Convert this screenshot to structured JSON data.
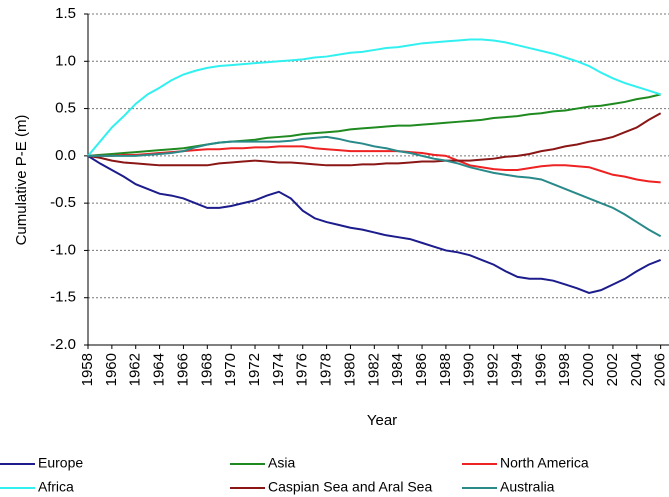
{
  "chart_data": {
    "type": "line",
    "y_label": "Cumulative P-E (m)",
    "x_label": "Year",
    "x": [
      1958,
      1959,
      1960,
      1961,
      1962,
      1963,
      1964,
      1965,
      1966,
      1967,
      1968,
      1969,
      1970,
      1971,
      1972,
      1973,
      1974,
      1975,
      1976,
      1977,
      1978,
      1979,
      1980,
      1981,
      1982,
      1983,
      1984,
      1985,
      1986,
      1987,
      1988,
      1989,
      1990,
      1991,
      1992,
      1993,
      1994,
      1995,
      1996,
      1997,
      1998,
      1999,
      2000,
      2001,
      2002,
      2003,
      2004,
      2005,
      2006
    ],
    "series": [
      {
        "name": "Europe",
        "color": "#1c1c8c",
        "values": [
          0.0,
          -0.08,
          -0.15,
          -0.22,
          -0.3,
          -0.35,
          -0.4,
          -0.42,
          -0.45,
          -0.5,
          -0.55,
          -0.55,
          -0.53,
          -0.5,
          -0.47,
          -0.42,
          -0.38,
          -0.45,
          -0.58,
          -0.66,
          -0.7,
          -0.73,
          -0.76,
          -0.78,
          -0.81,
          -0.84,
          -0.86,
          -0.88,
          -0.92,
          -0.96,
          -1.0,
          -1.02,
          -1.05,
          -1.1,
          -1.15,
          -1.22,
          -1.28,
          -1.3,
          -1.3,
          -1.32,
          -1.36,
          -1.4,
          -1.45,
          -1.42,
          -1.36,
          -1.3,
          -1.22,
          -1.15,
          -1.1
        ]
      },
      {
        "name": "Asia",
        "color": "#1f8a1f",
        "values": [
          0,
          0.01,
          0.02,
          0.03,
          0.04,
          0.05,
          0.06,
          0.07,
          0.08,
          0.1,
          0.12,
          0.14,
          0.15,
          0.16,
          0.17,
          0.19,
          0.2,
          0.21,
          0.23,
          0.24,
          0.25,
          0.26,
          0.28,
          0.29,
          0.3,
          0.31,
          0.32,
          0.32,
          0.33,
          0.34,
          0.35,
          0.36,
          0.37,
          0.38,
          0.4,
          0.41,
          0.42,
          0.44,
          0.45,
          0.47,
          0.48,
          0.5,
          0.52,
          0.53,
          0.55,
          0.57,
          0.6,
          0.62,
          0.65
        ]
      },
      {
        "name": "North America",
        "color": "#ee2222",
        "values": [
          0,
          0,
          0,
          0.01,
          0.01,
          0.02,
          0.03,
          0.04,
          0.05,
          0.06,
          0.07,
          0.07,
          0.08,
          0.08,
          0.09,
          0.09,
          0.1,
          0.1,
          0.1,
          0.08,
          0.07,
          0.06,
          0.05,
          0.05,
          0.05,
          0.05,
          0.05,
          0.04,
          0.03,
          0.01,
          0,
          -0.05,
          -0.1,
          -0.12,
          -0.14,
          -0.15,
          -0.15,
          -0.13,
          -0.11,
          -0.1,
          -0.1,
          -0.11,
          -0.12,
          -0.16,
          -0.2,
          -0.22,
          -0.25,
          -0.27,
          -0.28
        ]
      },
      {
        "name": "Africa",
        "color": "#33f0f0",
        "values": [
          0,
          0.15,
          0.3,
          0.42,
          0.55,
          0.65,
          0.72,
          0.8,
          0.86,
          0.9,
          0.93,
          0.95,
          0.96,
          0.97,
          0.98,
          0.99,
          1.0,
          1.01,
          1.02,
          1.04,
          1.05,
          1.07,
          1.09,
          1.1,
          1.12,
          1.14,
          1.15,
          1.17,
          1.19,
          1.2,
          1.21,
          1.22,
          1.23,
          1.23,
          1.22,
          1.2,
          1.17,
          1.14,
          1.11,
          1.08,
          1.04,
          1.0,
          0.95,
          0.88,
          0.82,
          0.77,
          0.73,
          0.69,
          0.65
        ]
      },
      {
        "name": "Caspian Sea and Aral Sea",
        "color": "#8b1616",
        "values": [
          0,
          -0.02,
          -0.05,
          -0.07,
          -0.08,
          -0.09,
          -0.1,
          -0.1,
          -0.1,
          -0.1,
          -0.1,
          -0.08,
          -0.07,
          -0.06,
          -0.05,
          -0.06,
          -0.07,
          -0.07,
          -0.08,
          -0.09,
          -0.1,
          -0.1,
          -0.1,
          -0.09,
          -0.09,
          -0.08,
          -0.08,
          -0.07,
          -0.06,
          -0.06,
          -0.05,
          -0.05,
          -0.05,
          -0.04,
          -0.03,
          -0.01,
          0,
          0.02,
          0.05,
          0.07,
          0.1,
          0.12,
          0.15,
          0.17,
          0.2,
          0.25,
          0.3,
          0.38,
          0.45
        ]
      },
      {
        "name": "Australia",
        "color": "#2a8a8a",
        "values": [
          0,
          0,
          0,
          0,
          0,
          0.01,
          0.02,
          0.03,
          0.05,
          0.09,
          0.12,
          0.14,
          0.15,
          0.15,
          0.15,
          0.15,
          0.15,
          0.16,
          0.18,
          0.19,
          0.2,
          0.18,
          0.15,
          0.13,
          0.1,
          0.08,
          0.05,
          0.03,
          0,
          -0.03,
          -0.05,
          -0.08,
          -0.12,
          -0.15,
          -0.18,
          -0.2,
          -0.22,
          -0.23,
          -0.25,
          -0.3,
          -0.35,
          -0.4,
          -0.45,
          -0.5,
          -0.55,
          -0.62,
          -0.7,
          -0.78,
          -0.85
        ]
      }
    ],
    "xlim": [
      1958,
      2006.7
    ],
    "xticks": [
      1958,
      1960,
      1962,
      1964,
      1966,
      1968,
      1970,
      1972,
      1974,
      1976,
      1978,
      1980,
      1982,
      1984,
      1986,
      1988,
      1990,
      1992,
      1994,
      1996,
      1998,
      2000,
      2002,
      2004,
      2006
    ],
    "ylim": [
      -2,
      1.5
    ],
    "yticks": [
      {
        "value": -2,
        "label": "-2.0"
      },
      -1.5,
      {
        "value": -1,
        "label": "-1.0"
      },
      -0.5,
      {
        "value": 0,
        "label": "0.0"
      },
      0.5,
      {
        "value": 1,
        "label": "1.0"
      },
      1.5
    ],
    "grid": true
  }
}
